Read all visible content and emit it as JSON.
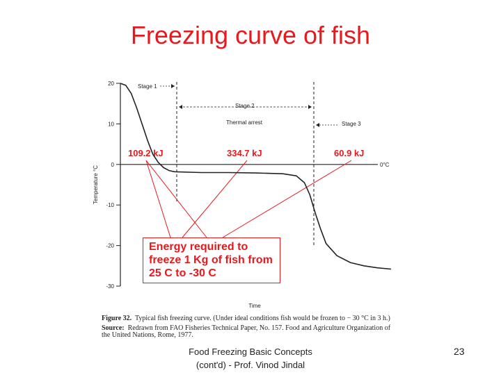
{
  "slide": {
    "title": "Freezing curve of fish",
    "footer_line1": "Food Freezing Basic Concepts",
    "footer_line2": "(cont'd) - Prof. Vinod Jindal",
    "page_number": "23"
  },
  "figure": {
    "energy_text": [
      "Energy required to",
      "freeze 1 Kg of fish from",
      "25 C to -30 C"
    ],
    "caption_label": "Figure 32.",
    "caption_text": "Typical fish freezing curve. (Under ideal conditions fish would be frozen to − 30 °C in 3 h.)",
    "source_label": "Source:",
    "source_text": "Redrawn from FAO Fisheries Technical Paper, No. 157. Food and Agriculture Organization of the United Nations, Rome, 1977."
  },
  "chart_data": {
    "type": "line",
    "title": "",
    "xlabel": "Time",
    "ylabel": "Temperature °C",
    "ylim": [
      -30,
      20
    ],
    "yticks": [
      "20",
      "10",
      "0",
      "-10",
      "-20",
      "-30"
    ],
    "series": [
      {
        "name": "fish temperature",
        "x": [
          0,
          2,
          4,
          6,
          8,
          10,
          12,
          14,
          16,
          18,
          20,
          30,
          40,
          50,
          60,
          65,
          68,
          70,
          72,
          74,
          76,
          80,
          85,
          90,
          95,
          100
        ],
        "values": [
          20,
          19.5,
          17.5,
          14,
          10,
          6,
          2.5,
          0.5,
          -0.8,
          -1.5,
          -1.8,
          -2.0,
          -2.0,
          -2.1,
          -2.3,
          -2.8,
          -4.5,
          -7.5,
          -12,
          -16,
          -19.5,
          -22.5,
          -24.2,
          -25.0,
          -25.5,
          -25.8
        ]
      }
    ],
    "reference_line": {
      "label": "0°C",
      "value": 0
    },
    "stages": [
      {
        "label": "Stage 1"
      },
      {
        "label": "Stage 2"
      },
      {
        "label": "Thermal arrest"
      },
      {
        "label": "Stage 3"
      }
    ],
    "energies": [
      "109.2 kJ",
      "334.7 kJ",
      "60.9 kJ"
    ]
  },
  "colors": {
    "accent_red": "#e8191d",
    "ink": "#222222"
  }
}
